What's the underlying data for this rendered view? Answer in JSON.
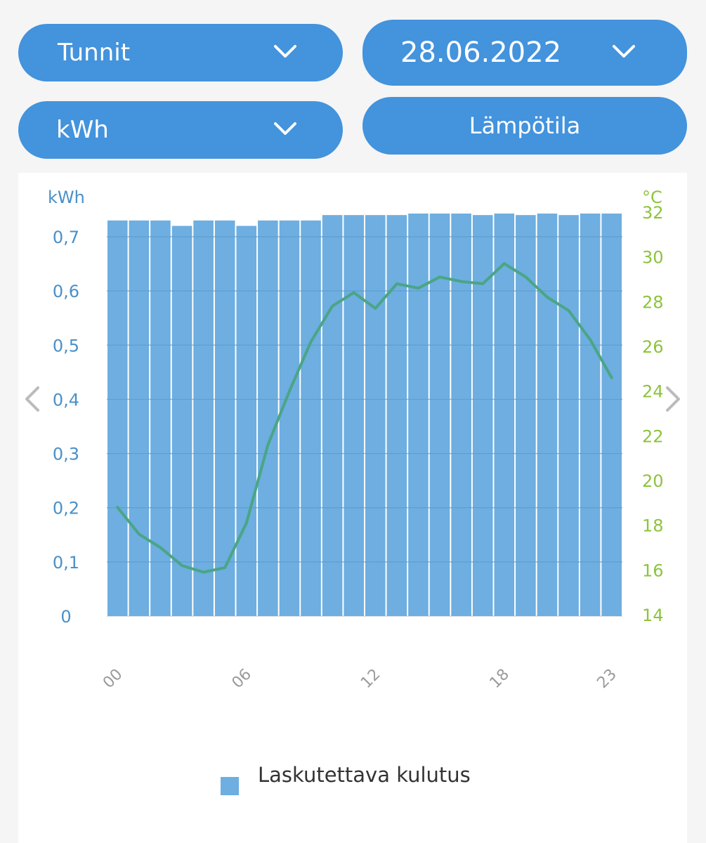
{
  "controls": {
    "period_label": "Tunnit",
    "date_label": "28.06.2022",
    "unit_label": "kWh",
    "temperature_button": "Lämpötila"
  },
  "colors": {
    "accent": "#4393dd",
    "bar": "#6eaee0",
    "temp_line": "#4aa585",
    "left_axis_text": "#4a90c8",
    "right_axis_text": "#8cc43c"
  },
  "chart_data": {
    "type": "bar",
    "ylabel": "kWh",
    "y2label": "°C",
    "ylim": [
      0,
      0.72
    ],
    "y2lim": [
      14,
      32
    ],
    "yticks": [
      "0",
      "0,1",
      "0,2",
      "0,3",
      "0,4",
      "0,5",
      "0,6",
      "0,7"
    ],
    "y2ticks": [
      "14",
      "16",
      "18",
      "20",
      "22",
      "24",
      "26",
      "28",
      "30",
      "32"
    ],
    "xtick_labels": [
      {
        "index": 0,
        "label": "00"
      },
      {
        "index": 6,
        "label": "06"
      },
      {
        "index": 12,
        "label": "12"
      },
      {
        "index": 18,
        "label": "18"
      },
      {
        "index": 23,
        "label": "23"
      }
    ],
    "categories": [
      "00",
      "01",
      "02",
      "03",
      "04",
      "05",
      "06",
      "07",
      "08",
      "09",
      "10",
      "11",
      "12",
      "13",
      "14",
      "15",
      "16",
      "17",
      "18",
      "19",
      "20",
      "21",
      "22",
      "23"
    ],
    "series": [
      {
        "name": "Laskutettava kulutus",
        "type": "bar",
        "axis": "left",
        "values": [
          0.73,
          0.73,
          0.73,
          0.72,
          0.73,
          0.73,
          0.72,
          0.73,
          0.73,
          0.73,
          0.74,
          0.74,
          0.74,
          0.74,
          0.75,
          0.75,
          0.75,
          0.74,
          0.76,
          0.74,
          0.75,
          0.74,
          0.75,
          0.76
        ]
      },
      {
        "type": "line",
        "axis": "right",
        "values": [
          18.8,
          17.6,
          17.0,
          16.2,
          15.9,
          16.1,
          18.1,
          21.6,
          24.0,
          26.2,
          27.8,
          28.4,
          27.7,
          28.8,
          28.6,
          29.1,
          28.9,
          28.8,
          29.7,
          29.1,
          28.2,
          27.6,
          26.3,
          24.6
        ]
      }
    ],
    "legend": {
      "position": "bottom-center",
      "label": "Laskutettava kulutus"
    },
    "grid": true
  }
}
